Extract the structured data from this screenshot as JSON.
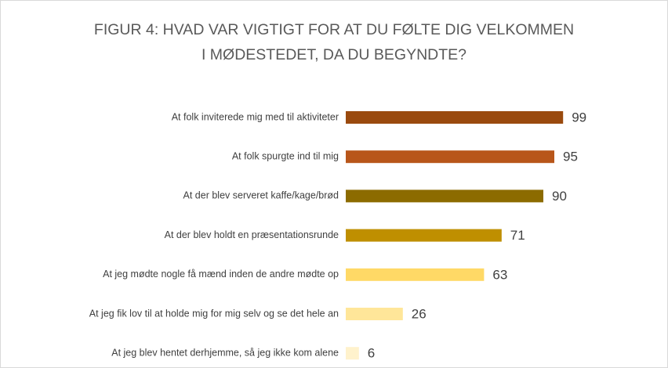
{
  "chart_data": {
    "type": "barh",
    "title": "FIGUR 4: HVAD VAR VIGTIGT FOR AT DU FØLTE DIG VELKOMMEN I MØDESTEDET, DA DU BEGYNDTE?",
    "categories": [
      "At folk inviterede mig med til aktiviteter",
      "At folk spurgte ind til mig",
      "At der blev serveret kaffe/kage/brød",
      "At der blev holdt en præsentationsrunde",
      "At jeg mødte nogle få mænd inden de andre mødte op",
      "At jeg fik lov til at holde mig for mig selv og se det hele an",
      "At jeg blev hentet derhjemme, så jeg ikke kom alene"
    ],
    "values": [
      99,
      95,
      90,
      71,
      63,
      26,
      6
    ],
    "colors": [
      "#9a4a0e",
      "#b8561a",
      "#8c6b00",
      "#bf8f00",
      "#ffd966",
      "#ffe699",
      "#fff2cc"
    ]
  }
}
